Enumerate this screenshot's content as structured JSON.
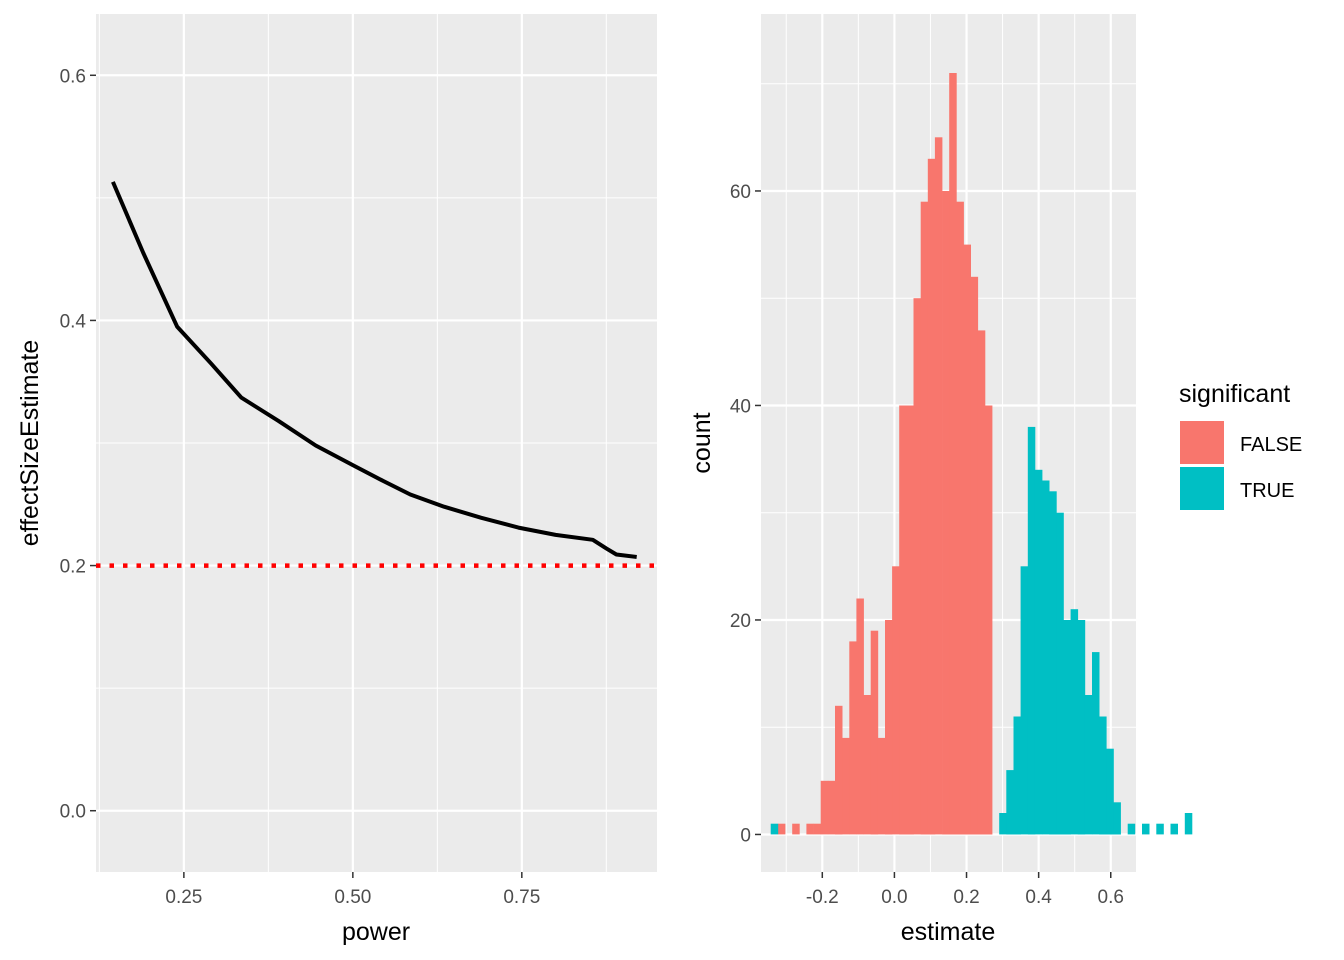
{
  "chart_data": [
    {
      "type": "line",
      "xlabel": "power",
      "ylabel": "effectSizeEstimate",
      "xlim": [
        0.12,
        0.95
      ],
      "ylim": [
        -0.05,
        0.65
      ],
      "x_ticks": [
        0.25,
        0.5,
        0.75
      ],
      "x_tick_labels": [
        "0.25",
        "0.50",
        "0.75"
      ],
      "y_ticks": [
        0.0,
        0.2,
        0.4,
        0.6
      ],
      "y_tick_labels": [
        "0.0",
        "0.2",
        "0.4",
        "0.6"
      ],
      "grid": true,
      "series": [
        {
          "x": [
            0.145,
            0.19,
            0.24,
            0.29,
            0.335,
            0.39,
            0.445,
            0.5,
            0.545,
            0.585,
            0.635,
            0.69,
            0.745,
            0.8,
            0.855,
            0.875,
            0.89,
            0.92
          ],
          "y": [
            0.513,
            0.455,
            0.395,
            0.365,
            0.337,
            0.318,
            0.298,
            0.282,
            0.269,
            0.258,
            0.248,
            0.239,
            0.231,
            0.225,
            0.221,
            0.214,
            0.209,
            0.207
          ]
        }
      ],
      "reference_line": {
        "y": 0.2,
        "style": "dotted",
        "color": "#ff0000"
      },
      "line_color": "#000000"
    },
    {
      "type": "bar",
      "xlabel": "estimate",
      "ylabel": "count",
      "xlim": [
        -0.37,
        0.67
      ],
      "ylim": [
        -3.5,
        76.5
      ],
      "x_ticks": [
        -0.2,
        0.0,
        0.2,
        0.4,
        0.6
      ],
      "x_tick_labels": [
        "-0.2",
        "0.0",
        "0.2",
        "0.4",
        "0.6"
      ],
      "y_ticks": [
        0,
        20,
        40,
        60
      ],
      "y_tick_labels": [
        "0",
        "20",
        "40",
        "60"
      ],
      "grid": true,
      "bin_start": -0.343,
      "bin_width": 0.0198,
      "series": [
        {
          "name": "FALSE",
          "color": "#F8766D",
          "values": [
            0,
            1,
            0,
            1,
            0,
            1,
            1,
            5,
            5,
            12,
            9,
            18,
            22,
            13,
            19,
            9,
            20,
            25,
            40,
            40,
            50,
            59,
            63,
            65,
            60,
            71,
            59,
            55,
            52,
            47,
            40
          ]
        },
        {
          "name": "TRUE",
          "color": "#00BFC4",
          "values": [
            1,
            0,
            0,
            0,
            0,
            0,
            0,
            0,
            0,
            0,
            0,
            0,
            0,
            0,
            0,
            0,
            0,
            0,
            0,
            0,
            0,
            0,
            0,
            0,
            0,
            0,
            0,
            0,
            0,
            0,
            0
          ]
        }
      ],
      "series_true_tail": {
        "bin_start_index": 18,
        "values": [
          0,
          0,
          0,
          0,
          0,
          0,
          0,
          0,
          0,
          0,
          0,
          0,
          0,
          0,
          2,
          6,
          11,
          25,
          38,
          34,
          33,
          32,
          30,
          20,
          21,
          20,
          13,
          17,
          11,
          8,
          3,
          0,
          1,
          0,
          1,
          0,
          1,
          0,
          1,
          0,
          2
        ]
      },
      "legend": {
        "title": "significant",
        "position": "right",
        "entries": [
          "FALSE",
          "TRUE"
        ]
      }
    }
  ],
  "legend": {
    "title": "significant",
    "entries": [
      {
        "label": "FALSE",
        "color": "#F8766D"
      },
      {
        "label": "TRUE",
        "color": "#00BFC4"
      }
    ]
  },
  "colors": {
    "panel_bg": "#EBEBEB",
    "grid": "#FFFFFF",
    "text": "#4D4D4D",
    "tick": "#333333"
  }
}
